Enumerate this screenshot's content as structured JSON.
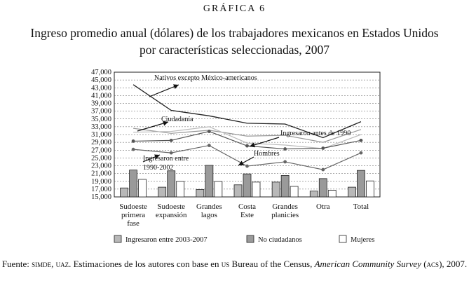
{
  "figure": {
    "kicker": "GRÁFICA 6",
    "title_line1": "Ingreso promedio anual (dólares) de los trabajadores mexicanos en Estados Unidos",
    "title_line2": "por características seleccionadas, 2007"
  },
  "source": {
    "prefix": "Fuente: ",
    "org": "simde, uaz",
    "mid1": ". Estimaciones de los autores con base en ",
    "us": "us",
    "mid2": " Bureau of the Census, ",
    "survey": "American Community Survey",
    "mid3": " (",
    "acs": "acs",
    "suffix": "), 2007."
  },
  "chart_data": {
    "type": "bar",
    "categories": [
      [
        "Sudoeste",
        "primera",
        "fase"
      ],
      [
        "Sudoeste",
        "expansión"
      ],
      [
        "Grandes",
        "lagos"
      ],
      [
        "Costa",
        "Este"
      ],
      [
        "Grandes",
        "planicies"
      ],
      [
        "Otra"
      ],
      [
        "Total"
      ]
    ],
    "ylim": [
      15000,
      47000
    ],
    "yticks": [
      "15,000",
      "17,000",
      "19,000",
      "21,000",
      "23,000",
      "25,000",
      "27,000",
      "29,000",
      "31,000",
      "33,000",
      "35,000",
      "37,000",
      "39,000",
      "41,000",
      "43,000",
      "45,000",
      "47,000"
    ],
    "ytick_values": [
      15000,
      17000,
      19000,
      21000,
      23000,
      25000,
      27000,
      29000,
      31000,
      33000,
      35000,
      37000,
      39000,
      41000,
      43000,
      45000,
      47000
    ],
    "grid": "horizontal dashed",
    "bar_series": [
      {
        "name": "Ingresaron entre 2003-2007",
        "color": "#b8b8b8",
        "values": [
          17300,
          17500,
          16900,
          18100,
          18800,
          16500,
          17500
        ]
      },
      {
        "name": "No ciudadanos",
        "color": "#9a9a9a",
        "values": [
          21900,
          21700,
          23100,
          20900,
          20500,
          19700,
          21800
        ]
      },
      {
        "name": "Mujeres",
        "color": "#ffffff",
        "values": [
          19500,
          19000,
          19000,
          18800,
          17700,
          16700,
          19100
        ]
      }
    ],
    "line_series": [
      {
        "name": "Nativos excepto México-americanos",
        "color": "#222222",
        "width": 1.3,
        "markers": false,
        "values": [
          43800,
          37200,
          35800,
          33900,
          33700,
          30200,
          34300
        ]
      },
      {
        "name": "Ciudadanía",
        "color": "#999999",
        "width": 1.2,
        "markers": false,
        "values": [
          32600,
          31300,
          32100,
          30600,
          30800,
          29000,
          32300
        ]
      },
      {
        "name": "Ingresaron antes de 1990",
        "color": "#bbbbbb",
        "width": 1.2,
        "markers": false,
        "values": [
          31600,
          31800,
          33000,
          28800,
          28300,
          27400,
          31000
        ]
      },
      {
        "name": "Hombres",
        "color": "#555555",
        "width": 1.2,
        "markers": true,
        "values": [
          29300,
          29500,
          31800,
          28100,
          27300,
          27500,
          29500
        ]
      },
      {
        "name": "Ingresaron entre 1990-2002",
        "color": "#666666",
        "width": 1.2,
        "markers": true,
        "values": [
          27200,
          26300,
          28200,
          22900,
          24000,
          22000,
          26300
        ]
      }
    ],
    "annotations": [
      {
        "text": "Nativos excepto México-americanos"
      },
      {
        "text": "Ciudadanía"
      },
      {
        "text": "Ingresaron antes de 1990"
      },
      {
        "text": "Hombres"
      },
      {
        "text": "Ingresaron entre"
      },
      {
        "text": "1990-2002"
      }
    ],
    "legend_position": "bottom"
  }
}
